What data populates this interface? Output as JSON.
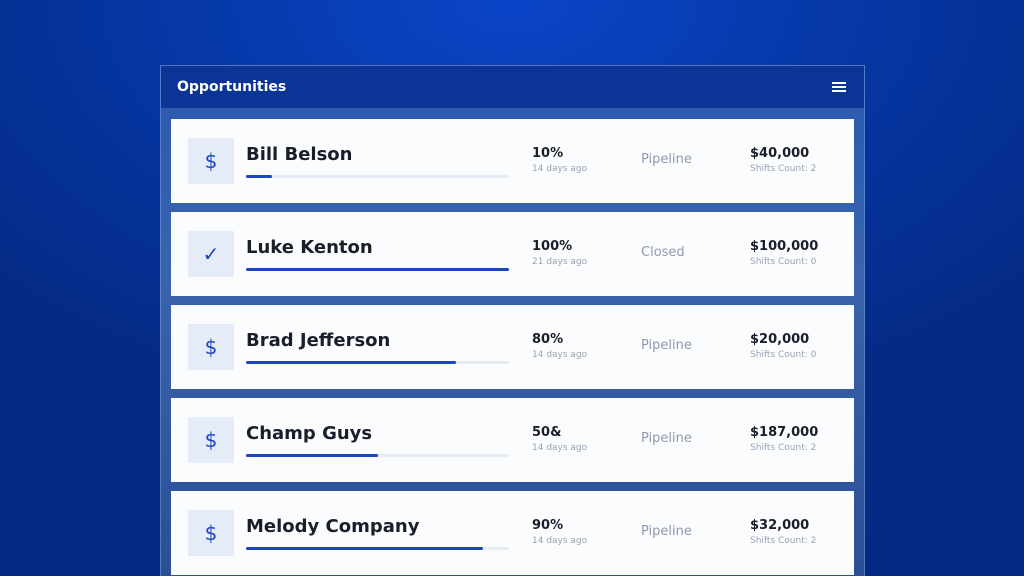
{
  "header": {
    "title": "Opportunities",
    "menu_icon": "hamburger-icon"
  },
  "colors": {
    "accent": "#1a46c0",
    "header": "#0a3596"
  },
  "opportunities": [
    {
      "name": "Bill Belson",
      "icon": "dollar-icon",
      "glyph": "$",
      "percent_label": "10%",
      "progress": 10,
      "ago": "14 days ago",
      "status": "Pipeline",
      "amount": "$40,000",
      "shifts": "Shifts Count: 2"
    },
    {
      "name": "Luke Kenton",
      "icon": "check-icon",
      "glyph": "✓",
      "percent_label": "100%",
      "progress": 100,
      "ago": "21 days ago",
      "status": "Closed",
      "amount": "$100,000",
      "shifts": "Shifts Count: 0"
    },
    {
      "name": "Brad Jefferson",
      "icon": "dollar-icon",
      "glyph": "$",
      "percent_label": "80%",
      "progress": 80,
      "ago": "14 days ago",
      "status": "Pipeline",
      "amount": "$20,000",
      "shifts": "Shifts Count: 0"
    },
    {
      "name": "Champ Guys",
      "icon": "dollar-icon",
      "glyph": "$",
      "percent_label": "50&",
      "progress": 50,
      "ago": "14 days ago",
      "status": "Pipeline",
      "amount": "$187,000",
      "shifts": "Shifts Count: 2"
    },
    {
      "name": "Melody Company",
      "icon": "dollar-icon",
      "glyph": "$",
      "percent_label": "90%",
      "progress": 90,
      "ago": "14 days ago",
      "status": "Pipeline",
      "amount": "$32,000",
      "shifts": "Shifts Count: 2"
    }
  ]
}
